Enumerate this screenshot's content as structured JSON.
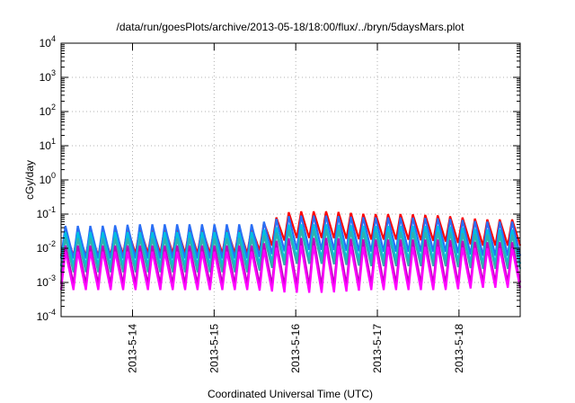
{
  "chart_data": {
    "type": "line",
    "title": "/data/run/goesPlots/archive/2013-05-18/18:00/flux/../bryn/5daysMars.plot",
    "xlabel": "Coordinated Universal Time (UTC)",
    "ylabel": "cGy/day",
    "y_scale": "log",
    "ylim": [
      0.0001,
      10000
    ],
    "y_ticks": [
      {
        "base": "10",
        "exp": "-4",
        "value": 0.0001
      },
      {
        "base": "10",
        "exp": "-3",
        "value": 0.001
      },
      {
        "base": "10",
        "exp": "-2",
        "value": 0.01
      },
      {
        "base": "10",
        "exp": "-1",
        "value": 0.1
      },
      {
        "base": "10",
        "exp": "0",
        "value": 1
      },
      {
        "base": "10",
        "exp": "1",
        "value": 10
      },
      {
        "base": "10",
        "exp": "2",
        "value": 100
      },
      {
        "base": "10",
        "exp": "3",
        "value": 1000
      },
      {
        "base": "10",
        "exp": "4",
        "value": 10000
      }
    ],
    "xlim": [
      "2013-05-13T03:00",
      "2013-05-18T18:00"
    ],
    "x_ticks": [
      "2013-5-14",
      "2013-5-15",
      "2013-5-16",
      "2013-5-17",
      "2013-5-18"
    ],
    "grid": true,
    "legend": "none",
    "series_colors": [
      "#ff0000",
      "#2a6ff5",
      "#00c0e0",
      "#30b0b0",
      "#c000c0",
      "#ff00ff"
    ],
    "approx_series": [
      {
        "color": "#ff0000",
        "peak_values": [
          0.03,
          0.03,
          0.04,
          0.04,
          0.04,
          0.04,
          0.12,
          0.12,
          0.1,
          0.1,
          0.09,
          0.07,
          0.07
        ],
        "trough_values": [
          0.006,
          0.006,
          0.007,
          0.007,
          0.007,
          0.007,
          0.02,
          0.02,
          0.018,
          0.018,
          0.016,
          0.012,
          0.012
        ]
      },
      {
        "color": "#2a6ff5",
        "peak_values": [
          0.045,
          0.045,
          0.05,
          0.05,
          0.05,
          0.05,
          0.09,
          0.09,
          0.08,
          0.08,
          0.075,
          0.06,
          0.06
        ],
        "trough_values": [
          0.005,
          0.005,
          0.005,
          0.005,
          0.005,
          0.005,
          0.009,
          0.009,
          0.008,
          0.008,
          0.008,
          0.006,
          0.006
        ]
      },
      {
        "color": "#00c0e0",
        "peak_values": [
          0.03,
          0.03,
          0.03,
          0.03,
          0.03,
          0.03,
          0.05,
          0.05,
          0.045,
          0.045,
          0.045,
          0.035,
          0.035
        ],
        "trough_values": [
          0.003,
          0.003,
          0.003,
          0.003,
          0.003,
          0.003,
          0.005,
          0.005,
          0.0045,
          0.0045,
          0.0045,
          0.0035,
          0.0035
        ]
      },
      {
        "color": "#30b0b0",
        "peak_values": [
          0.02,
          0.02,
          0.02,
          0.02,
          0.02,
          0.02,
          0.035,
          0.035,
          0.03,
          0.03,
          0.03,
          0.025,
          0.025
        ],
        "trough_values": [
          0.002,
          0.002,
          0.002,
          0.002,
          0.002,
          0.002,
          0.0035,
          0.0035,
          0.003,
          0.003,
          0.003,
          0.0025,
          0.0025
        ]
      },
      {
        "color": "#c000c0",
        "peak_values": [
          0.012,
          0.012,
          0.012,
          0.012,
          0.012,
          0.012,
          0.02,
          0.02,
          0.018,
          0.018,
          0.018,
          0.015,
          0.015
        ],
        "trough_values": [
          0.0009,
          0.0009,
          0.0009,
          0.0009,
          0.0009,
          0.0009,
          0.0008,
          0.0008,
          0.0009,
          0.0009,
          0.0009,
          0.001,
          0.001
        ]
      },
      {
        "color": "#ff00ff",
        "peak_values": [
          0.008,
          0.008,
          0.008,
          0.008,
          0.008,
          0.008,
          0.012,
          0.012,
          0.011,
          0.011,
          0.011,
          0.01,
          0.01
        ],
        "trough_values": [
          0.0006,
          0.0006,
          0.0006,
          0.0006,
          0.0006,
          0.0006,
          0.0005,
          0.0005,
          0.0006,
          0.0006,
          0.0006,
          0.0007,
          0.0007
        ]
      }
    ],
    "cycles_per_day": 6.5
  }
}
